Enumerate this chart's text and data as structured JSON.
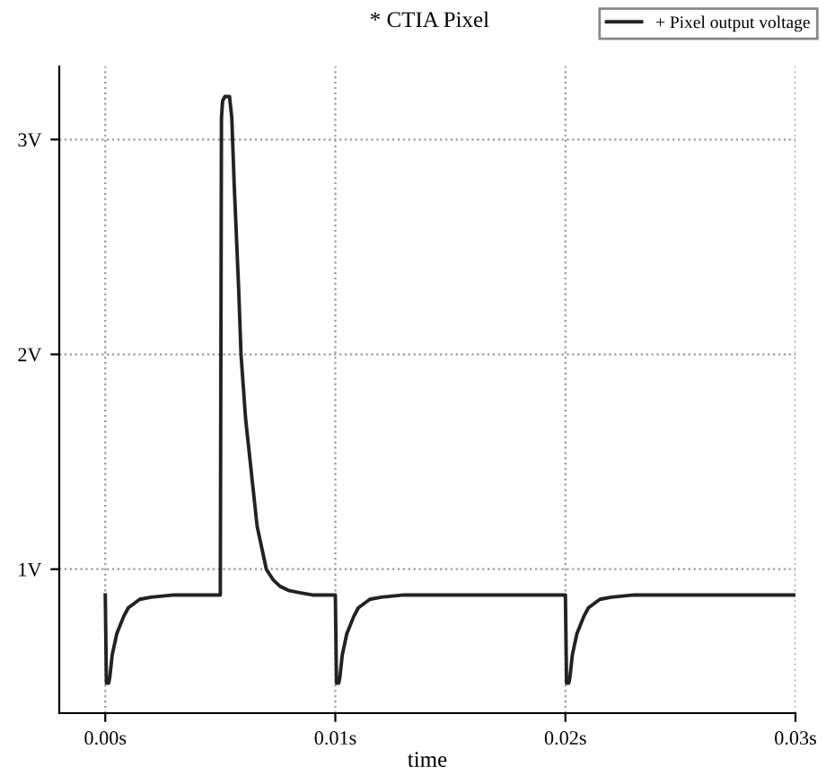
{
  "chart_data": {
    "type": "line",
    "title": "* CTIA Pixel",
    "xlabel": "time",
    "series": [
      {
        "name": "+ Pixel output voltage",
        "color": "#222222",
        "x": [
          0.0,
          5e-05,
          0.0001,
          0.00015,
          0.0002,
          0.0003,
          0.0005,
          0.0008,
          0.001,
          0.0015,
          0.002,
          0.003,
          0.004,
          0.005,
          0.00505,
          0.0051,
          0.0052,
          0.0054,
          0.0055,
          0.0056,
          0.0058,
          0.0059,
          0.0061,
          0.0063,
          0.0066,
          0.007,
          0.0073,
          0.0076,
          0.008,
          0.0085,
          0.009,
          0.0095,
          0.01,
          0.01005,
          0.0101,
          0.01015,
          0.0102,
          0.0103,
          0.0105,
          0.0108,
          0.011,
          0.0115,
          0.012,
          0.013,
          0.015,
          0.018,
          0.02,
          0.02005,
          0.0201,
          0.02015,
          0.0202,
          0.0203,
          0.0205,
          0.0208,
          0.021,
          0.0215,
          0.022,
          0.023,
          0.025,
          0.028,
          0.03
        ],
        "values": [
          0.88,
          0.47,
          0.47,
          0.47,
          0.5,
          0.6,
          0.7,
          0.78,
          0.82,
          0.86,
          0.87,
          0.88,
          0.88,
          0.88,
          3.1,
          3.18,
          3.2,
          3.2,
          3.1,
          2.8,
          2.3,
          2.0,
          1.7,
          1.5,
          1.2,
          1.0,
          0.95,
          0.92,
          0.9,
          0.89,
          0.88,
          0.88,
          0.88,
          0.47,
          0.47,
          0.47,
          0.5,
          0.6,
          0.7,
          0.78,
          0.82,
          0.86,
          0.87,
          0.88,
          0.88,
          0.88,
          0.88,
          0.47,
          0.47,
          0.47,
          0.5,
          0.6,
          0.7,
          0.78,
          0.82,
          0.86,
          0.87,
          0.88,
          0.88,
          0.88,
          0.88
        ]
      }
    ],
    "xlim": [
      -0.002,
      0.03
    ],
    "ylim": [
      0.33,
      3.34
    ],
    "xticks": [
      {
        "value": 0.0,
        "label": "0.00s"
      },
      {
        "value": 0.01,
        "label": "0.01s"
      },
      {
        "value": 0.02,
        "label": "0.02s"
      },
      {
        "value": 0.03,
        "label": "0.03s"
      }
    ],
    "yticks": [
      {
        "value": 1,
        "label": "1V"
      },
      {
        "value": 2,
        "label": "2V"
      },
      {
        "value": 3,
        "label": "3V"
      }
    ],
    "grid": true,
    "legend": "top right",
    "line_style": "solid",
    "marker": "none"
  }
}
